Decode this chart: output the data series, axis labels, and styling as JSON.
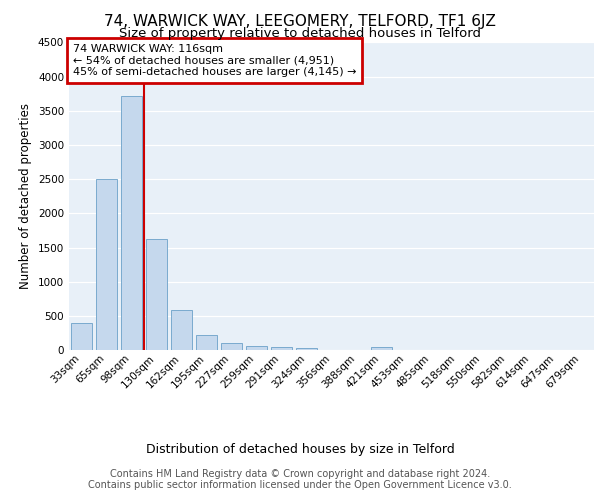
{
  "title1": "74, WARWICK WAY, LEEGOMERY, TELFORD, TF1 6JZ",
  "title2": "Size of property relative to detached houses in Telford",
  "xlabel": "Distribution of detached houses by size in Telford",
  "ylabel": "Number of detached properties",
  "footnote1": "Contains HM Land Registry data © Crown copyright and database right 2024.",
  "footnote2": "Contains public sector information licensed under the Open Government Licence v3.0.",
  "categories": [
    "33sqm",
    "65sqm",
    "98sqm",
    "130sqm",
    "162sqm",
    "195sqm",
    "227sqm",
    "259sqm",
    "291sqm",
    "324sqm",
    "356sqm",
    "388sqm",
    "421sqm",
    "453sqm",
    "485sqm",
    "518sqm",
    "550sqm",
    "582sqm",
    "614sqm",
    "647sqm",
    "679sqm"
  ],
  "values": [
    390,
    2500,
    3720,
    1630,
    580,
    220,
    100,
    55,
    50,
    35,
    0,
    0,
    45,
    0,
    0,
    0,
    0,
    0,
    0,
    0,
    0
  ],
  "bar_color": "#c5d8ed",
  "bar_edge_color": "#7aaace",
  "annotation_line1": "74 WARWICK WAY: 116sqm",
  "annotation_line2": "← 54% of detached houses are smaller (4,951)",
  "annotation_line3": "45% of semi-detached houses are larger (4,145) →",
  "annotation_box_color": "#cc0000",
  "vline_x_index": 2.5,
  "vline_color": "#cc0000",
  "ylim": [
    0,
    4500
  ],
  "background_color": "#e8f0f8",
  "grid_color": "#ffffff",
  "title1_fontsize": 11,
  "title2_fontsize": 9.5,
  "tick_fontsize": 7.5,
  "ylabel_fontsize": 8.5,
  "xlabel_fontsize": 9,
  "footnote_fontsize": 7,
  "annotation_fontsize": 8
}
